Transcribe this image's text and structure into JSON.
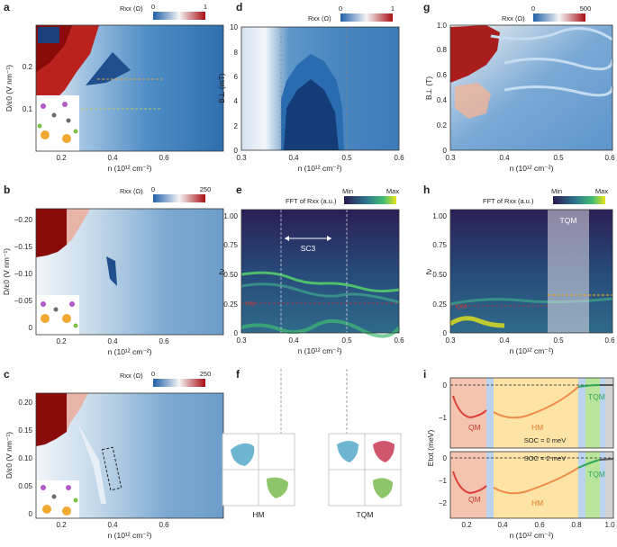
{
  "panels": {
    "a": {
      "label": "a",
      "cbar_title": "Rxx (Ω)",
      "cbar_min": "0",
      "cbar_max": "1",
      "ylabel": "D/ε0 (V nm⁻¹)",
      "xlabel": "n (10¹² cm⁻²)",
      "yticks": [
        "0.1",
        "0.2"
      ],
      "xticks": [
        "0.2",
        "0.4",
        "0.6"
      ]
    },
    "b": {
      "label": "b",
      "cbar_title": "Rxx (Ω)",
      "cbar_min": "0",
      "cbar_max": "250",
      "ylabel": "D/ε0 (V nm⁻¹)",
      "xlabel": "n (10¹² cm⁻²)",
      "yticks": [
        "−0.20",
        "−0.15",
        "−0.10",
        "−0.05",
        "0"
      ],
      "xticks": [
        "0.2",
        "0.4",
        "0.6"
      ]
    },
    "c": {
      "label": "c",
      "cbar_title": "Rxx (Ω)",
      "cbar_min": "0",
      "cbar_max": "250",
      "ylabel": "D/ε0 (V nm⁻¹)",
      "xlabel": "n (10¹² cm⁻²)",
      "yticks": [
        "0.20",
        "0.15",
        "0.10",
        "0.05",
        "0"
      ],
      "xticks": [
        "0.2",
        "0.4",
        "0.6"
      ]
    },
    "d": {
      "label": "d",
      "cbar_title": "Rxx (Ω)",
      "cbar_min": "0",
      "cbar_max": "1",
      "ylabel": "B⊥ (mT)",
      "xlabel": "n (10¹² cm⁻²)",
      "yticks": [
        "0",
        "2",
        "4",
        "6",
        "8",
        "10"
      ],
      "xticks": [
        "0.3",
        "0.4",
        "0.5",
        "0.6"
      ]
    },
    "e": {
      "label": "e",
      "cbar_title": "FFT of Rxx (a.u.)",
      "cbar_min": "Min",
      "cbar_max": "Max",
      "ylabel": "fν",
      "xlabel": "n (10¹² cm⁻²)",
      "yticks": [
        "0",
        "0.25",
        "0.50",
        "0.75",
        "1.00"
      ],
      "xticks": [
        "0.3",
        "0.4",
        "0.5",
        "0.6"
      ],
      "annot_sc3": "SC3",
      "annot_hm": "HM"
    },
    "f": {
      "label": "f",
      "left_caption": "HM",
      "right_caption": "TQM"
    },
    "g": {
      "label": "g",
      "cbar_title": "Rxx (Ω)",
      "cbar_min": "0",
      "cbar_max": "500",
      "ylabel": "B⊥ (T)",
      "xlabel": "n (10¹² cm⁻²)",
      "yticks": [
        "0",
        "0.2",
        "0.4",
        "0.6",
        "0.8",
        "1.0"
      ],
      "xticks": [
        "0.3",
        "0.4",
        "0.5",
        "0.6"
      ]
    },
    "h": {
      "label": "h",
      "cbar_title": "FFT of Rxx (a.u.)",
      "cbar_min": "Min",
      "cbar_max": "Max",
      "ylabel": "fν",
      "xlabel": "n (10¹² cm⁻²)",
      "yticks": [
        "0",
        "0.25",
        "0.50",
        "0.75",
        "1.00"
      ],
      "xticks": [
        "0.3",
        "0.4",
        "0.5",
        "0.6"
      ],
      "annot_tqm": "TQM",
      "annot_qm": "QM"
    },
    "i": {
      "label": "i",
      "ylabel": "Etot (meV)",
      "xlabel": "n (10¹² cm⁻²)",
      "top_yticks": [
        "0",
        "−1"
      ],
      "bottom_yticks": [
        "0",
        "−1",
        "−2"
      ],
      "xticks": [
        "0.2",
        "0.4",
        "0.6",
        "0.8",
        "1.0"
      ],
      "top_soc": "SOC = 0 meV",
      "bottom_soc": "SOC = 2 meV",
      "qm": "QM",
      "hm": "HM",
      "tqm": "TQM"
    }
  },
  "colors": {
    "fft_max": "#e6e419",
    "fft_min": "#2a1a4f",
    "rxx_low": "#3a7ab8",
    "rxx_high": "#8b0a0a",
    "qm_region": "#f4c4b0",
    "hm_region": "#fde3a6",
    "tqm_region": "#b9e59a",
    "gap_region": "#bcd3f0",
    "grey_region": "#d2d2d2"
  }
}
